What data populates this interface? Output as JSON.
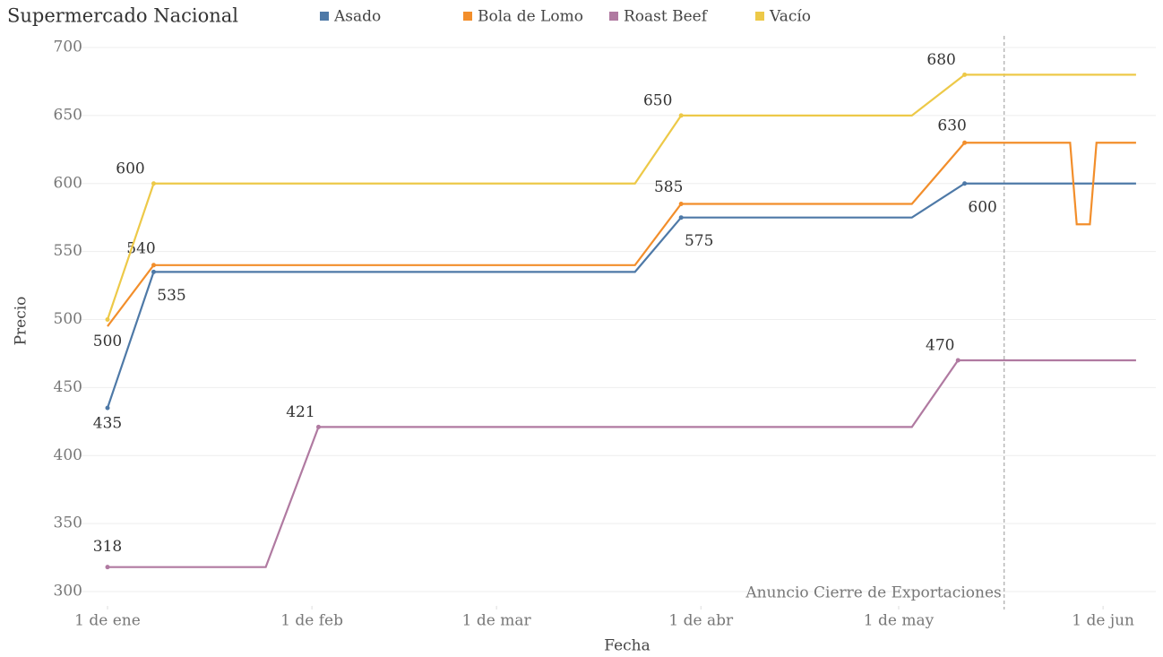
{
  "chart_data": {
    "type": "line",
    "title": "Supermercado Nacional",
    "x_label": "Fecha",
    "y_label": "Precio",
    "xlim": [
      "01-01",
      "06-09"
    ],
    "xticks": [
      {
        "value": "01-01",
        "label": "1 de ene"
      },
      {
        "value": "02-01",
        "label": "1 de feb"
      },
      {
        "value": "03-01",
        "label": "1 de mar"
      },
      {
        "value": "04-01",
        "label": "1 de abr"
      },
      {
        "value": "05-01",
        "label": "1 de may"
      },
      {
        "value": "06-01",
        "label": "1 de jun"
      }
    ],
    "ylim": [
      300,
      700
    ],
    "yticks": [
      300,
      350,
      400,
      450,
      500,
      550,
      600,
      650,
      700
    ],
    "grid": true,
    "series": [
      {
        "name": "Asado",
        "color": "#4e79a7",
        "x": [
          "01-01",
          "01-08",
          "03-22",
          "03-29",
          "05-03",
          "05-11",
          "06-06"
        ],
        "values": [
          435,
          535,
          535,
          575,
          575,
          600,
          600
        ],
        "value_labels": [
          "435",
          "535",
          null,
          "575",
          null,
          "600",
          null
        ]
      },
      {
        "name": "Bola de Lomo",
        "color": "#f28e2b",
        "x": [
          "01-01",
          "01-08",
          "03-22",
          "03-29",
          "05-03",
          "05-11",
          "05-27",
          "05-28",
          "05-30",
          "05-31",
          "06-06"
        ],
        "values": [
          495,
          540,
          540,
          585,
          585,
          630,
          630,
          570,
          570,
          630,
          630
        ],
        "value_labels": [
          null,
          "540",
          null,
          "585",
          null,
          "630",
          null,
          null,
          null,
          null,
          null
        ]
      },
      {
        "name": "Roast Beef",
        "color": "#b07aa1",
        "x": [
          "01-01",
          "01-25",
          "02-02",
          "05-03",
          "05-10",
          "06-06"
        ],
        "values": [
          318,
          318,
          421,
          421,
          470,
          470
        ],
        "value_labels": [
          "318",
          null,
          "421",
          null,
          "470",
          null
        ]
      },
      {
        "name": "Vacío",
        "color": "#edc948",
        "x": [
          "01-01",
          "01-08",
          "03-22",
          "03-29",
          "05-03",
          "05-11",
          "06-06"
        ],
        "values": [
          500,
          600,
          600,
          650,
          650,
          680,
          680
        ],
        "value_labels": [
          "500",
          "600",
          null,
          "650",
          null,
          "680",
          null
        ]
      }
    ],
    "annotation": {
      "x": "05-17",
      "text": "Anuncio Cierre de Exportaciones"
    }
  }
}
